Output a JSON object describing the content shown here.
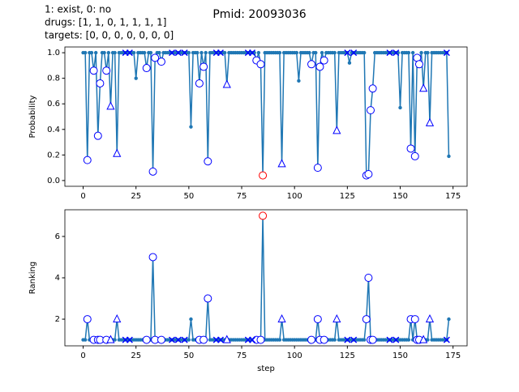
{
  "chart_data": [
    {
      "type": "line",
      "title": "Pmid: 20093036",
      "annotation": [
        "1: exist,    0: no",
        "drugs: [1, 1, 0, 1, 1, 1, 1]",
        "targets: [0, 0, 0, 0, 0, 0, 0]"
      ],
      "ylabel": "Probability",
      "xlim": [
        -8.65,
        181.65
      ],
      "xticks": [
        0,
        25,
        50,
        75,
        100,
        125,
        150,
        175
      ],
      "ylim": [
        -0.045,
        1.045
      ],
      "yticks": [
        {
          "value": 0,
          "label": "0.0"
        },
        {
          "value": 0.2,
          "label": "0.2"
        },
        {
          "value": 0.4,
          "label": "0.4"
        },
        {
          "value": 0.6,
          "label": "0.6"
        },
        {
          "value": 0.8,
          "label": "0.8"
        },
        {
          "value": 1,
          "label": "1.0"
        }
      ],
      "x": [
        0,
        1,
        2,
        3,
        4,
        5,
        6,
        7,
        8,
        9,
        10,
        11,
        12,
        13,
        14,
        15,
        16,
        17,
        18,
        19,
        20,
        21,
        22,
        23,
        24,
        25,
        26,
        27,
        28,
        29,
        30,
        31,
        32,
        33,
        34,
        35,
        36,
        37,
        38,
        39,
        40,
        41,
        42,
        43,
        44,
        45,
        46,
        47,
        48,
        49,
        50,
        51,
        52,
        53,
        54,
        55,
        56,
        57,
        58,
        59,
        60,
        61,
        62,
        63,
        64,
        65,
        66,
        67,
        68,
        69,
        70,
        71,
        72,
        73,
        74,
        75,
        76,
        77,
        78,
        79,
        80,
        81,
        82,
        83,
        84,
        85,
        86,
        87,
        88,
        89,
        90,
        91,
        92,
        93,
        94,
        95,
        96,
        97,
        98,
        99,
        100,
        101,
        102,
        103,
        104,
        105,
        106,
        107,
        108,
        109,
        110,
        111,
        112,
        113,
        114,
        115,
        116,
        117,
        118,
        119,
        120,
        121,
        122,
        123,
        124,
        125,
        126,
        127,
        128,
        129,
        130,
        131,
        132,
        133,
        134,
        135,
        136,
        137,
        138,
        139,
        140,
        141,
        142,
        143,
        144,
        145,
        146,
        147,
        148,
        149,
        150,
        151,
        152,
        153,
        154,
        155,
        156,
        157,
        158,
        159,
        160,
        161,
        162,
        163,
        164,
        165,
        166,
        167,
        168,
        169,
        170,
        171,
        172,
        173
      ],
      "series": [
        {
          "marker": ".",
          "color": "#1f77b4",
          "values": [
            1,
            1,
            0.16,
            1,
            1,
            0.86,
            1,
            0.35,
            0.76,
            1,
            1,
            0.86,
            1,
            0.58,
            1,
            1,
            0.21,
            1,
            1,
            1,
            1,
            1,
            1,
            1,
            1,
            0.8,
            1,
            1,
            1,
            1,
            0.88,
            1,
            1,
            0.07,
            0.96,
            1,
            1,
            0.93,
            1,
            1,
            1,
            1,
            1,
            1,
            1,
            1,
            1,
            1,
            1,
            1,
            1,
            0.42,
            1,
            1,
            1,
            0.76,
            1,
            0.89,
            1,
            0.15,
            1,
            1,
            1,
            1,
            1,
            1,
            1,
            1,
            0.75,
            1,
            1,
            1,
            1,
            1,
            1,
            1,
            1,
            1,
            1,
            1,
            1,
            1,
            0.94,
            1,
            0.91,
            0.04,
            1,
            1,
            1,
            1,
            1,
            1,
            1,
            1,
            0.13,
            1,
            1,
            1,
            1,
            1,
            1,
            1,
            0.78,
            1,
            1,
            1,
            1,
            1,
            0.91,
            1,
            1,
            0.1,
            0.89,
            1,
            0.94,
            1,
            1,
            1,
            1,
            1,
            0.39,
            1,
            1,
            1,
            1,
            1,
            0.92,
            1,
            1,
            1,
            1,
            1,
            1,
            1,
            0.04,
            0.05,
            0.55,
            0.72,
            1,
            1,
            1,
            1,
            1,
            1,
            1,
            1,
            1,
            1,
            1,
            1,
            0.57,
            1,
            1,
            1,
            1,
            0.25,
            1,
            0.19,
            0.96,
            0.91,
            1,
            0.72,
            1,
            1,
            0.45,
            1,
            1,
            1,
            1,
            1,
            1,
            1,
            1,
            0.19
          ]
        },
        {
          "marker": "o",
          "color": "#0000ff",
          "x": [
            2,
            5,
            7,
            8,
            11,
            30,
            33,
            34,
            37,
            55,
            57,
            59,
            82,
            84,
            108,
            111,
            112,
            114,
            134,
            135,
            136,
            137,
            155,
            157,
            158,
            159
          ],
          "values": [
            0.16,
            0.86,
            0.35,
            0.76,
            0.86,
            0.88,
            0.07,
            0.96,
            0.93,
            0.76,
            0.89,
            0.15,
            0.94,
            0.91,
            0.91,
            0.1,
            0.89,
            0.94,
            0.04,
            0.05,
            0.55,
            0.72,
            0.25,
            0.19,
            0.96,
            0.91
          ]
        },
        {
          "marker": "^",
          "color": "#0000ff",
          "x": [
            13,
            16,
            68,
            94,
            120,
            161,
            164
          ],
          "values": [
            0.58,
            0.21,
            0.75,
            0.13,
            0.39,
            0.72,
            0.45
          ]
        },
        {
          "marker": "x",
          "color": "#0000ff",
          "x": [
            20,
            22,
            42,
            45,
            48,
            63,
            65,
            78,
            80,
            125,
            128,
            145,
            148,
            172
          ],
          "values": [
            1,
            1,
            1,
            1,
            1,
            1,
            1,
            1,
            1,
            1,
            1,
            1,
            1,
            1
          ]
        },
        {
          "marker": "o",
          "color": "#ff0000",
          "x": [
            85
          ],
          "values": [
            0.04
          ]
        }
      ]
    },
    {
      "type": "line",
      "xlabel": "step",
      "ylabel": "Ranking",
      "xlim": [
        -8.65,
        181.65
      ],
      "xticks": [
        0,
        25,
        50,
        75,
        100,
        125,
        150,
        175
      ],
      "ylim": [
        0.71,
        7.29
      ],
      "yticks": [
        2,
        4,
        6
      ],
      "series": [
        {
          "marker": ".",
          "color": "#1f77b4",
          "values": [
            1,
            1,
            2,
            1,
            1,
            1,
            1,
            1,
            1,
            1,
            1,
            1,
            1,
            1,
            1,
            1,
            2,
            1,
            1,
            1,
            1,
            1,
            1,
            1,
            1,
            1,
            1,
            1,
            1,
            1,
            1,
            1,
            1,
            5,
            1,
            1,
            1,
            1,
            1,
            1,
            1,
            1,
            1,
            1,
            1,
            1,
            1,
            1,
            1,
            1,
            1,
            2,
            1,
            1,
            1,
            1,
            1,
            1,
            1,
            3,
            1,
            1,
            1,
            1,
            1,
            1,
            1,
            1,
            1,
            1,
            1,
            1,
            1,
            1,
            1,
            1,
            1,
            1,
            1,
            1,
            1,
            1,
            1,
            1,
            1,
            7,
            1,
            1,
            1,
            1,
            1,
            1,
            1,
            1,
            2,
            1,
            1,
            1,
            1,
            1,
            1,
            1,
            1,
            1,
            1,
            1,
            1,
            1,
            1,
            1,
            1,
            2,
            1,
            1,
            1,
            1,
            1,
            1,
            1,
            1,
            2,
            1,
            1,
            1,
            1,
            1,
            1,
            1,
            1,
            1,
            1,
            1,
            1,
            1,
            2,
            4,
            1,
            1,
            1,
            1,
            1,
            1,
            1,
            1,
            1,
            1,
            1,
            1,
            1,
            1,
            1,
            1,
            1,
            1,
            1,
            2,
            1,
            2,
            1,
            1,
            1,
            1,
            1,
            1,
            2,
            1,
            1,
            1,
            1,
            1,
            1,
            1,
            1,
            2
          ]
        },
        {
          "marker": "o",
          "color": "#0000ff",
          "x": [
            2,
            5,
            7,
            8,
            11,
            30,
            33,
            34,
            37,
            55,
            57,
            59,
            82,
            84,
            108,
            111,
            112,
            114,
            134,
            135,
            136,
            137,
            155,
            157,
            158,
            159
          ],
          "values": [
            2,
            1,
            1,
            1,
            1,
            1,
            5,
            1,
            1,
            1,
            1,
            3,
            1,
            1,
            1,
            2,
            1,
            1,
            2,
            4,
            1,
            1,
            2,
            2,
            1,
            1
          ]
        },
        {
          "marker": "^",
          "color": "#0000ff",
          "x": [
            13,
            16,
            68,
            94,
            120,
            161,
            164
          ],
          "values": [
            1,
            2,
            1,
            2,
            2,
            1,
            2
          ]
        },
        {
          "marker": "x",
          "color": "#0000ff",
          "x": [
            20,
            22,
            42,
            45,
            48,
            63,
            65,
            78,
            80,
            125,
            128,
            145,
            148,
            172
          ],
          "values": [
            1,
            1,
            1,
            1,
            1,
            1,
            1,
            1,
            1,
            1,
            1,
            1,
            1,
            1
          ]
        },
        {
          "marker": "o",
          "color": "#ff0000",
          "x": [
            85
          ],
          "values": [
            7
          ]
        }
      ]
    }
  ]
}
